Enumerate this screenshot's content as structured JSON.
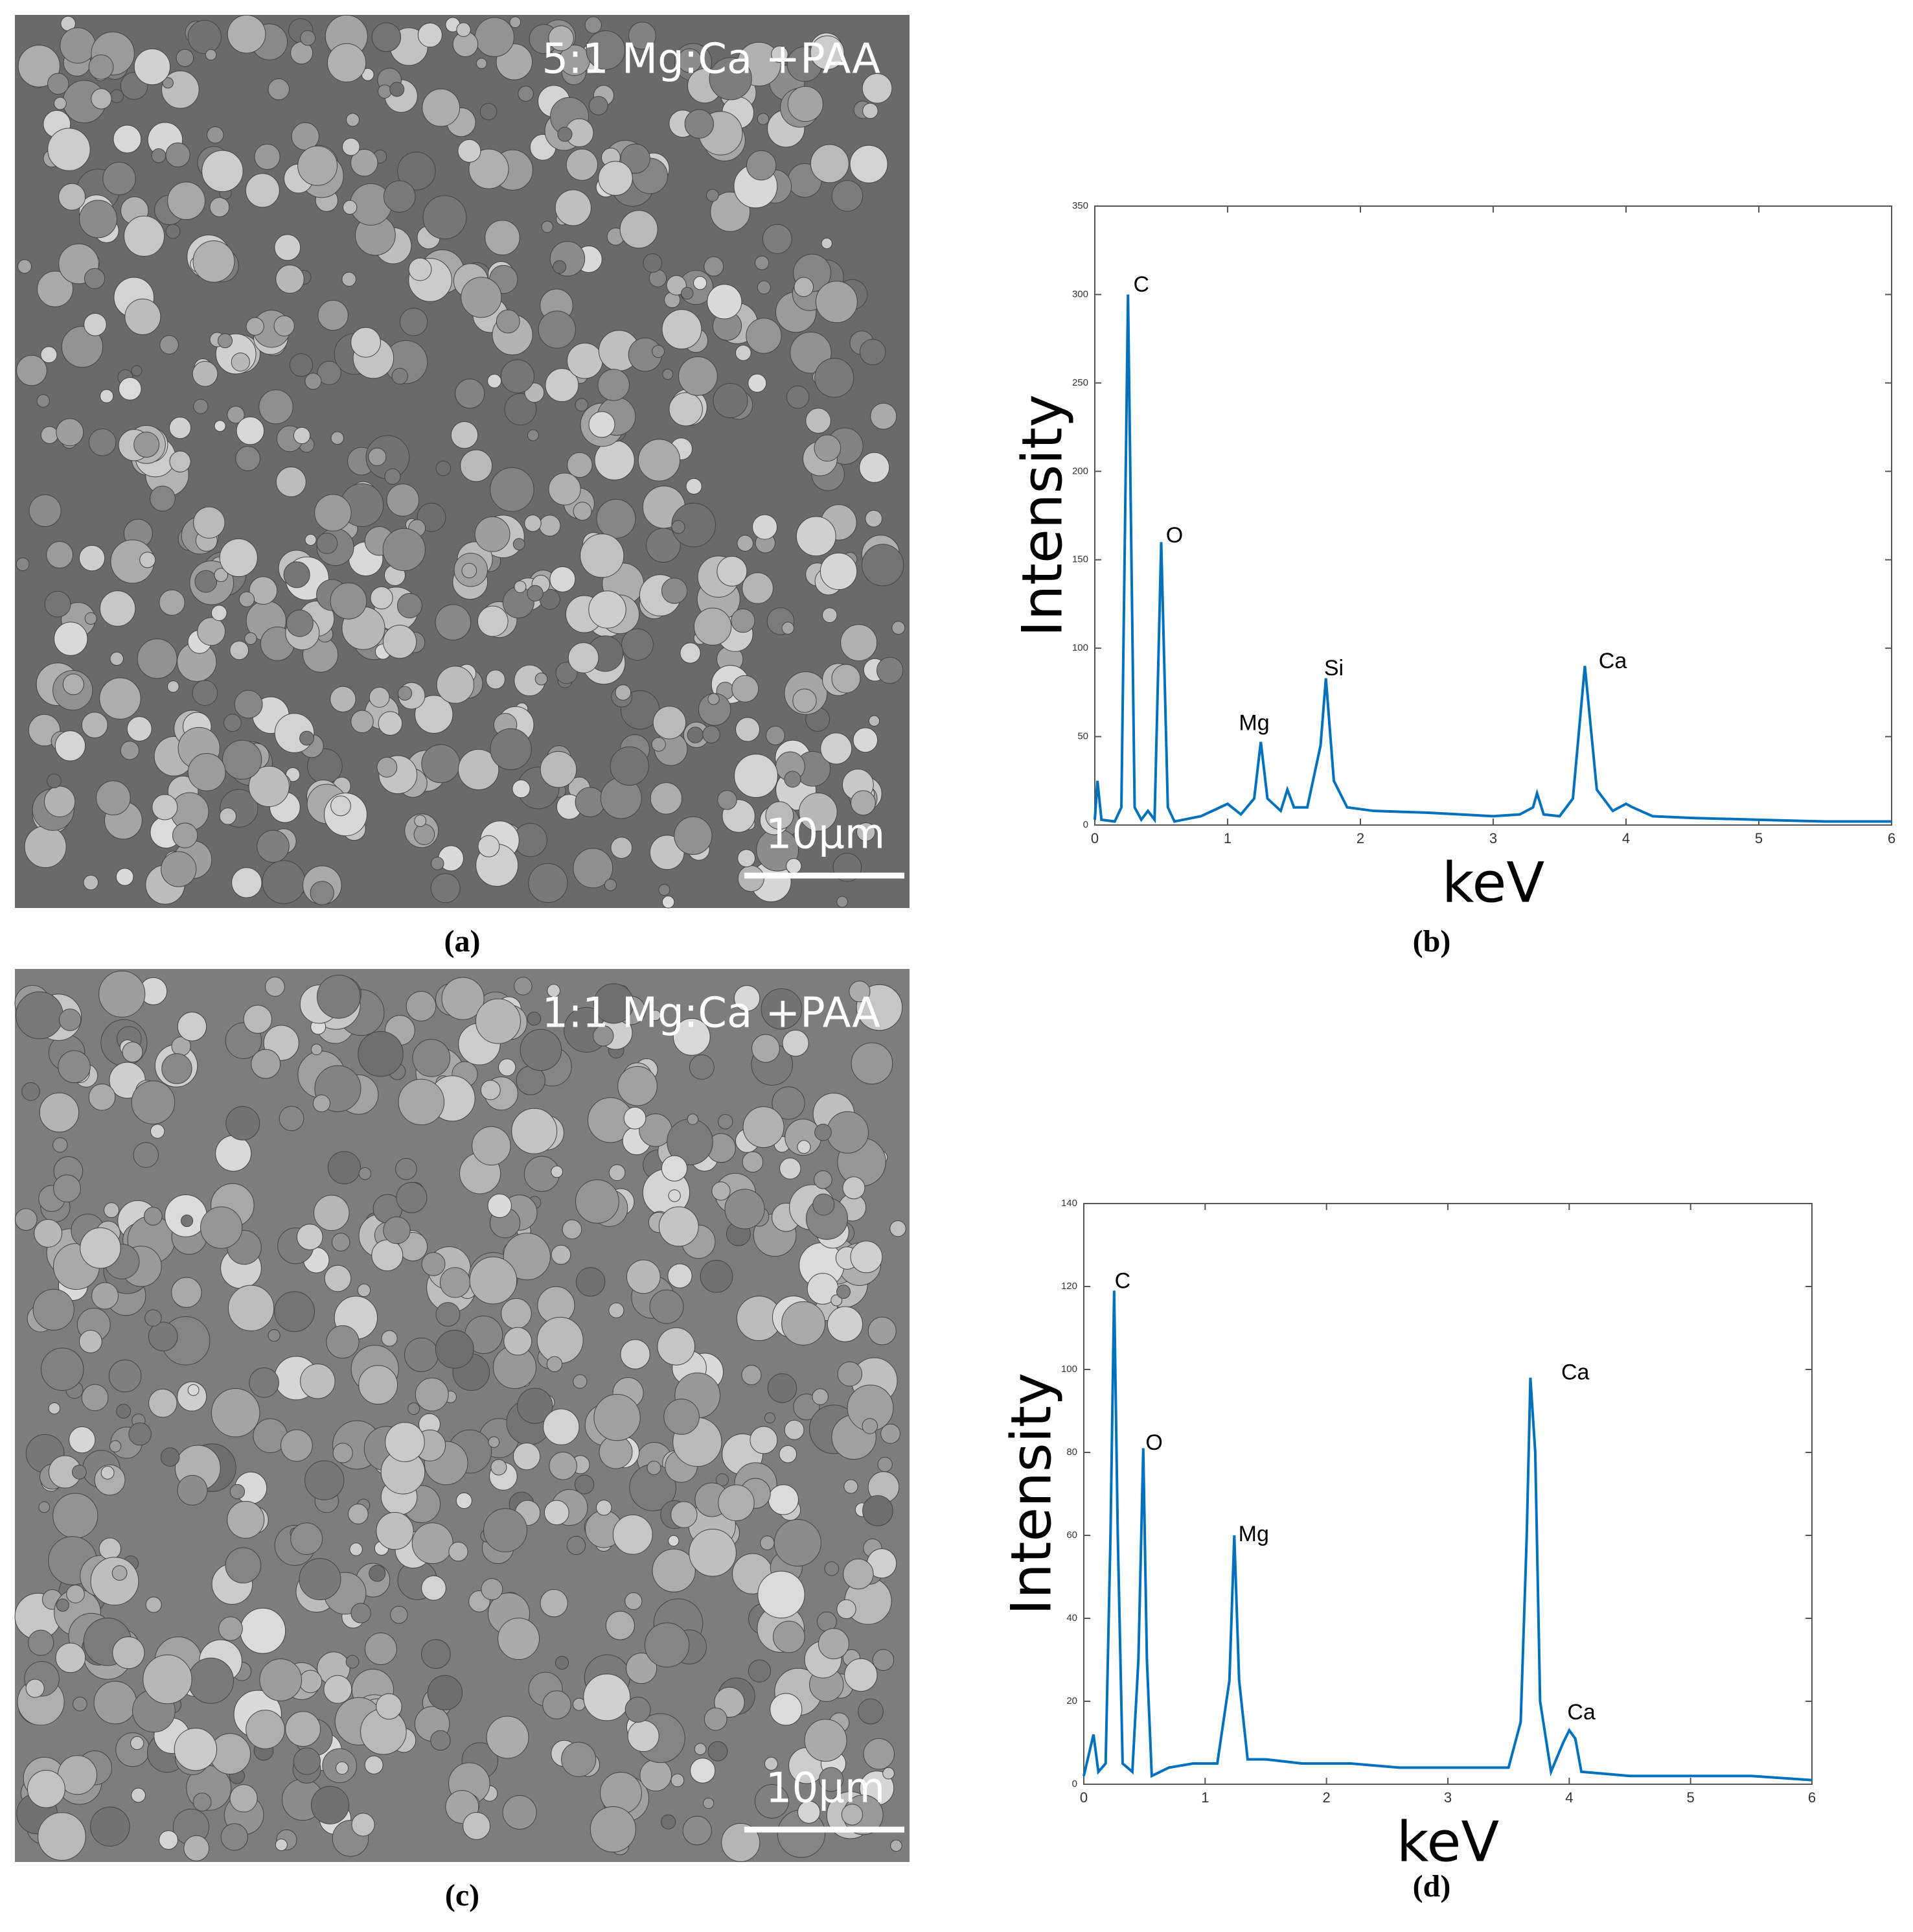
{
  "chart_data": [
    {
      "type": "line",
      "xlabel": "keV",
      "ylabel": "Intensity",
      "xlim": [
        0,
        6
      ],
      "xticks": [
        0,
        1,
        2,
        3,
        4,
        5,
        6
      ],
      "ylim": [
        0,
        350
      ],
      "yticks": [
        0,
        50,
        100,
        150,
        200,
        250,
        300,
        350
      ],
      "x": [
        0,
        0.02,
        0.05,
        0.15,
        0.2,
        0.25,
        0.3,
        0.35,
        0.4,
        0.45,
        0.5,
        0.55,
        0.6,
        0.8,
        1.0,
        1.1,
        1.2,
        1.25,
        1.3,
        1.4,
        1.45,
        1.5,
        1.6,
        1.7,
        1.74,
        1.8,
        1.9,
        2.1,
        2.5,
        3.0,
        3.2,
        3.3,
        3.33,
        3.38,
        3.5,
        3.6,
        3.69,
        3.78,
        3.9,
        4.0,
        4.05,
        4.2,
        4.5,
        5.0,
        5.5,
        6.0
      ],
      "series": [
        {
          "color": "#0072bd",
          "values": [
            3,
            25,
            3,
            2,
            10,
            300,
            10,
            3,
            8,
            3,
            160,
            10,
            2,
            5,
            12,
            6,
            15,
            47,
            15,
            8,
            20,
            10,
            10,
            45,
            83,
            25,
            10,
            8,
            7,
            5,
            6,
            10,
            18,
            6,
            5,
            15,
            90,
            20,
            8,
            12,
            10,
            5,
            4,
            3,
            2,
            2
          ]
        }
      ],
      "annotations": [
        {
          "text": "C",
          "x": 0.35,
          "y": 305
        },
        {
          "text": "O",
          "x": 0.6,
          "y": 163
        },
        {
          "text": "Mg",
          "x": 1.2,
          "y": 57
        },
        {
          "text": "Si",
          "x": 1.8,
          "y": 88
        },
        {
          "text": "Ca",
          "x": 3.9,
          "y": 92
        }
      ],
      "caption": "(b)"
    },
    {
      "type": "line",
      "xlabel": "keV",
      "ylabel": "Intensity",
      "xlim": [
        0,
        6
      ],
      "xticks": [
        0,
        1,
        2,
        3,
        4,
        5,
        6
      ],
      "ylim": [
        0,
        140
      ],
      "yticks": [
        0,
        20,
        40,
        60,
        80,
        100,
        120,
        140
      ],
      "x": [
        0,
        0.08,
        0.12,
        0.18,
        0.22,
        0.25,
        0.28,
        0.32,
        0.4,
        0.45,
        0.49,
        0.52,
        0.56,
        0.7,
        0.9,
        1.1,
        1.2,
        1.24,
        1.28,
        1.35,
        1.5,
        1.8,
        2.2,
        2.6,
        3.0,
        3.3,
        3.5,
        3.6,
        3.65,
        3.68,
        3.72,
        3.76,
        3.85,
        3.95,
        4.0,
        4.05,
        4.1,
        4.5,
        5.0,
        5.5,
        6.0
      ],
      "series": [
        {
          "color": "#0072bd",
          "values": [
            2,
            12,
            3,
            5,
            60,
            119,
            60,
            5,
            3,
            30,
            81,
            30,
            2,
            4,
            5,
            5,
            25,
            60,
            25,
            6,
            6,
            5,
            5,
            4,
            4,
            4,
            4,
            15,
            60,
            98,
            80,
            20,
            3,
            10,
            13,
            11,
            3,
            2,
            2,
            2,
            1
          ]
        }
      ],
      "annotations": [
        {
          "text": "C",
          "x": 0.32,
          "y": 121
        },
        {
          "text": "O",
          "x": 0.58,
          "y": 82
        },
        {
          "text": "Mg",
          "x": 1.4,
          "y": 60
        },
        {
          "text": "Ca",
          "x": 4.05,
          "y": 99
        },
        {
          "text": "Ca",
          "x": 4.1,
          "y": 17
        }
      ],
      "caption": "(d)"
    }
  ],
  "images": [
    {
      "label": "5:1 Mg:Ca +PAA",
      "scale_bar": "10μm",
      "caption": "(a)"
    },
    {
      "label": "1:1 Mg:Ca +PAA",
      "scale_bar": "10μm",
      "caption": "(c)"
    }
  ]
}
